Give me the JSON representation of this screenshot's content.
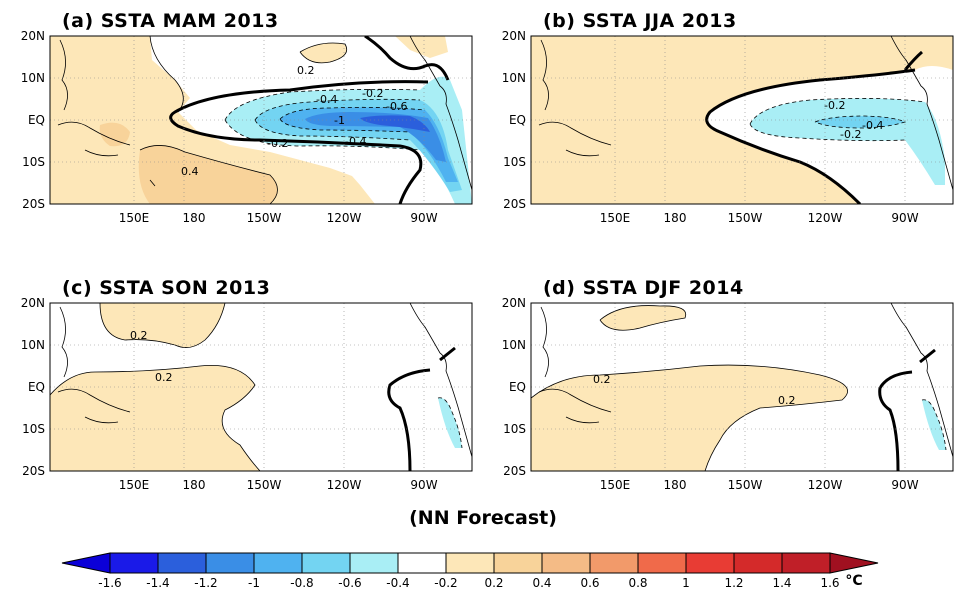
{
  "figure": {
    "footer": "(NN Forecast)",
    "unit": "°C"
  },
  "chart_data": [
    {
      "type": "heatmap",
      "title": "(a) SSTA  MAM 2013",
      "x_tick_labels": [
        "150E",
        "180",
        "150W",
        "120W",
        "90W"
      ],
      "y_tick_labels": [
        "20N",
        "10N",
        "EQ",
        "10S",
        "20S"
      ],
      "contour_labels": [
        "0.2",
        "-0.4",
        "-0.2",
        "-0.6",
        "-1",
        "-0.2",
        "0.4",
        "-0.4"
      ],
      "colors": {
        "warm1": "#fde7b8",
        "warm2": "#f8d39a",
        "warm3": "#f4bb86",
        "cool1": "#a9eef5",
        "cool2": "#73d4f2",
        "cool3": "#4fb2f0",
        "cool4": "#3a8ee6",
        "cool5": "#2b5fdc"
      }
    },
    {
      "type": "heatmap",
      "title": "(b) SSTA  JJA 2013",
      "x_tick_labels": [
        "150E",
        "180",
        "150W",
        "120W",
        "90W"
      ],
      "y_tick_labels": [
        "20N",
        "10N",
        "EQ",
        "10S",
        "20S"
      ],
      "contour_labels": [
        "-0.2",
        "-0.4",
        "-0.2"
      ]
    },
    {
      "type": "heatmap",
      "title": "(c) SSTA  SON 2013",
      "x_tick_labels": [
        "150E",
        "180",
        "150W",
        "120W",
        "90W"
      ],
      "y_tick_labels": [
        "20N",
        "10N",
        "EQ",
        "10S",
        "20S"
      ],
      "contour_labels": [
        "0.2",
        "0.2"
      ]
    },
    {
      "type": "heatmap",
      "title": "(d) SSTA  DJF 2014",
      "x_tick_labels": [
        "150E",
        "180",
        "150W",
        "120W",
        "90W"
      ],
      "y_tick_labels": [
        "20N",
        "10N",
        "EQ",
        "10S",
        "20S"
      ],
      "contour_labels": [
        "0.2",
        "0.2"
      ]
    }
  ],
  "colorbar": {
    "ticks": [
      "-1.6",
      "-1.4",
      "-1.2",
      "-1",
      "-0.8",
      "-0.6",
      "-0.4",
      "-0.2",
      "0.2",
      "0.4",
      "0.6",
      "0.8",
      "1",
      "1.2",
      "1.4",
      "1.6"
    ],
    "colors": [
      "#1a1ae8",
      "#2b5fdc",
      "#3a8ee6",
      "#4fb2f0",
      "#73d4f2",
      "#a9eef5",
      "#ffffff",
      "#fde7b8",
      "#f8d39a",
      "#f4bb86",
      "#f29a6a",
      "#f06a4a",
      "#e83c34",
      "#d42a2a",
      "#c01f28"
    ],
    "low_color": "#0b00d8",
    "high_color": "#a01020"
  }
}
